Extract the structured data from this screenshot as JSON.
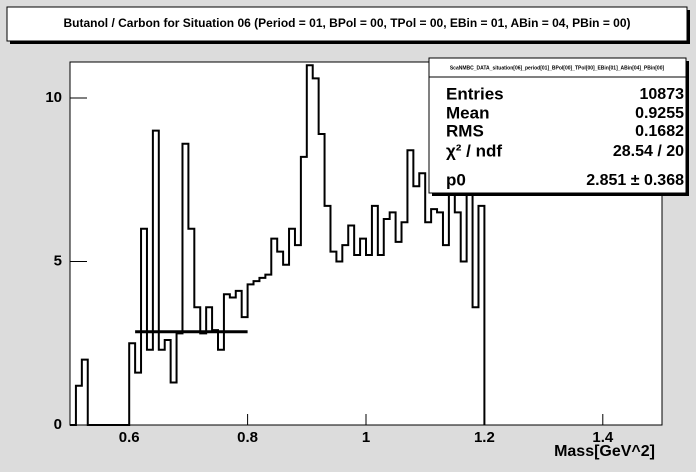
{
  "chart_data": {
    "type": "histogram",
    "title": "Butanol / Carbon for Situation 06 (Period = 01, BPol = 00, TPol = 00, EBin = 01, ABin = 04, PBin = 00)",
    "x_label": "Mass[GeV^2]",
    "bins": [
      0.5,
      0.51,
      0.52,
      0.53,
      0.54,
      0.55,
      0.56,
      0.57,
      0.58,
      0.59,
      0.6,
      0.61,
      0.62,
      0.63,
      0.64,
      0.65,
      0.66,
      0.67,
      0.68,
      0.69,
      0.7,
      0.71,
      0.72,
      0.73,
      0.74,
      0.75,
      0.76,
      0.77,
      0.78,
      0.79,
      0.8,
      0.81,
      0.82,
      0.83,
      0.84,
      0.85,
      0.86,
      0.87,
      0.88,
      0.89,
      0.9,
      0.91,
      0.92,
      0.93,
      0.94,
      0.95,
      0.96,
      0.97,
      0.98,
      0.99,
      1.0,
      1.01,
      1.02,
      1.03,
      1.04,
      1.05,
      1.06,
      1.07,
      1.08,
      1.09,
      1.1,
      1.11,
      1.12,
      1.13,
      1.14,
      1.15,
      1.16,
      1.17,
      1.18,
      1.19,
      1.2
    ],
    "values": [
      0,
      1.2,
      2.0,
      0,
      0,
      0,
      0,
      0,
      0,
      0,
      2.5,
      1.6,
      6.0,
      2.3,
      9.0,
      2.3,
      2.6,
      1.3,
      2.8,
      8.6,
      6.0,
      3.6,
      2.8,
      3.6,
      2.9,
      2.3,
      4.0,
      3.9,
      4.1,
      3.3,
      4.3,
      4.4,
      4.5,
      4.6,
      5.7,
      5.3,
      4.9,
      6.0,
      5.5,
      8.2,
      11.0,
      10.6,
      8.9,
      6.7,
      5.3,
      5.0,
      5.5,
      6.1,
      5.2,
      5.7,
      5.2,
      6.7,
      5.2,
      6.3,
      6.5,
      5.6,
      6.2,
      8.4,
      7.3,
      7.7,
      6.2,
      6.6,
      6.5,
      5.5,
      7.8,
      6.5,
      5.0,
      8.0,
      3.6,
      6.7
    ],
    "color": "#000000",
    "xlim": [
      0.5,
      1.5
    ],
    "xticks": [
      0.6,
      0.8,
      1,
      1.2,
      1.4
    ],
    "ylim": [
      0,
      11.1
    ],
    "yticks": [
      0,
      5,
      10
    ],
    "fit": {
      "value": 2.851,
      "range": [
        0.61,
        0.8
      ],
      "color": "#000000"
    },
    "stats": {
      "title": "ScaNMBC_DATA_situation[06]_period[01]_BPol[00]_TPol[00]_EBin[01]_ABin[04]_PBin[00]",
      "rows": [
        [
          "Entries",
          "10873"
        ],
        [
          "Mean",
          "0.9255"
        ],
        [
          "RMS",
          "0.1682"
        ],
        [
          "χ² / ndf",
          "28.54 / 20"
        ],
        [
          "p0",
          "2.851 ± 0.368"
        ]
      ]
    }
  }
}
